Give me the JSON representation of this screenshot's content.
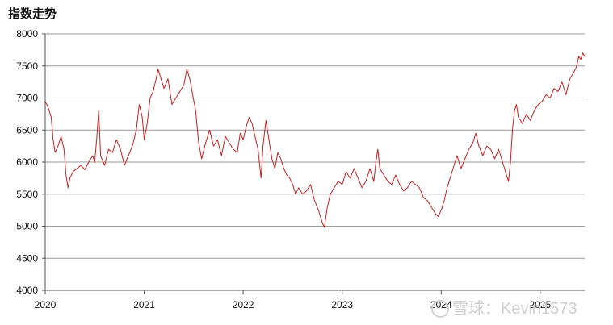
{
  "chart_data": {
    "type": "line",
    "title": "指数走势",
    "xlabel": "",
    "ylabel": "",
    "xlim": [
      2020.0,
      2025.45
    ],
    "ylim": [
      4000,
      8000
    ],
    "yticks": [
      4000,
      4500,
      5000,
      5500,
      6000,
      6500,
      7000,
      7500,
      8000
    ],
    "xticks": [
      {
        "label": "2020",
        "value": 2020.0
      },
      {
        "label": "2021",
        "value": 2021.0
      },
      {
        "label": "2022",
        "value": 2022.0
      },
      {
        "label": "2023",
        "value": 2023.0
      },
      {
        "label": "2024",
        "value": 2024.0
      },
      {
        "label": "2025",
        "value": 2025.0
      }
    ],
    "grid": "horizontal",
    "legend": "none",
    "series": [
      {
        "name": "",
        "color": "#cc1e1e",
        "points": [
          [
            2020.0,
            6950
          ],
          [
            2020.03,
            6850
          ],
          [
            2020.06,
            6700
          ],
          [
            2020.08,
            6350
          ],
          [
            2020.1,
            6150
          ],
          [
            2020.13,
            6250
          ],
          [
            2020.16,
            6400
          ],
          [
            2020.19,
            6200
          ],
          [
            2020.21,
            5800
          ],
          [
            2020.23,
            5600
          ],
          [
            2020.25,
            5750
          ],
          [
            2020.28,
            5850
          ],
          [
            2020.32,
            5900
          ],
          [
            2020.36,
            5950
          ],
          [
            2020.4,
            5880
          ],
          [
            2020.44,
            6000
          ],
          [
            2020.48,
            6100
          ],
          [
            2020.5,
            6000
          ],
          [
            2020.52,
            6350
          ],
          [
            2020.54,
            6800
          ],
          [
            2020.56,
            6100
          ],
          [
            2020.6,
            5950
          ],
          [
            2020.64,
            6200
          ],
          [
            2020.68,
            6150
          ],
          [
            2020.72,
            6350
          ],
          [
            2020.76,
            6200
          ],
          [
            2020.8,
            5950
          ],
          [
            2020.84,
            6100
          ],
          [
            2020.88,
            6250
          ],
          [
            2020.92,
            6500
          ],
          [
            2020.95,
            6900
          ],
          [
            2020.98,
            6700
          ],
          [
            2021.0,
            6350
          ],
          [
            2021.03,
            6600
          ],
          [
            2021.06,
            7000
          ],
          [
            2021.09,
            7100
          ],
          [
            2021.12,
            7300
          ],
          [
            2021.14,
            7450
          ],
          [
            2021.17,
            7300
          ],
          [
            2021.2,
            7150
          ],
          [
            2021.24,
            7300
          ],
          [
            2021.28,
            6900
          ],
          [
            2021.32,
            7000
          ],
          [
            2021.36,
            7100
          ],
          [
            2021.4,
            7200
          ],
          [
            2021.43,
            7450
          ],
          [
            2021.46,
            7300
          ],
          [
            2021.49,
            7050
          ],
          [
            2021.52,
            6800
          ],
          [
            2021.55,
            6300
          ],
          [
            2021.58,
            6050
          ],
          [
            2021.62,
            6300
          ],
          [
            2021.66,
            6500
          ],
          [
            2021.7,
            6250
          ],
          [
            2021.74,
            6350
          ],
          [
            2021.78,
            6100
          ],
          [
            2021.82,
            6400
          ],
          [
            2021.86,
            6300
          ],
          [
            2021.9,
            6200
          ],
          [
            2021.94,
            6150
          ],
          [
            2021.97,
            6450
          ],
          [
            2022.0,
            6350
          ],
          [
            2022.03,
            6550
          ],
          [
            2022.06,
            6700
          ],
          [
            2022.09,
            6600
          ],
          [
            2022.12,
            6400
          ],
          [
            2022.15,
            6200
          ],
          [
            2022.18,
            5750
          ],
          [
            2022.2,
            6250
          ],
          [
            2022.23,
            6650
          ],
          [
            2022.26,
            6350
          ],
          [
            2022.29,
            6050
          ],
          [
            2022.32,
            5900
          ],
          [
            2022.35,
            6150
          ],
          [
            2022.38,
            6050
          ],
          [
            2022.41,
            5900
          ],
          [
            2022.44,
            5800
          ],
          [
            2022.47,
            5750
          ],
          [
            2022.5,
            5650
          ],
          [
            2022.53,
            5500
          ],
          [
            2022.56,
            5600
          ],
          [
            2022.6,
            5500
          ],
          [
            2022.64,
            5550
          ],
          [
            2022.68,
            5650
          ],
          [
            2022.72,
            5400
          ],
          [
            2022.76,
            5250
          ],
          [
            2022.8,
            5050
          ],
          [
            2022.82,
            4980
          ],
          [
            2022.85,
            5300
          ],
          [
            2022.88,
            5500
          ],
          [
            2022.92,
            5600
          ],
          [
            2022.96,
            5700
          ],
          [
            2023.0,
            5650
          ],
          [
            2023.04,
            5850
          ],
          [
            2023.08,
            5750
          ],
          [
            2023.12,
            5900
          ],
          [
            2023.16,
            5750
          ],
          [
            2023.2,
            5600
          ],
          [
            2023.24,
            5700
          ],
          [
            2023.28,
            5900
          ],
          [
            2023.32,
            5700
          ],
          [
            2023.34,
            6000
          ],
          [
            2023.36,
            6200
          ],
          [
            2023.38,
            5900
          ],
          [
            2023.42,
            5800
          ],
          [
            2023.46,
            5700
          ],
          [
            2023.5,
            5650
          ],
          [
            2023.54,
            5800
          ],
          [
            2023.58,
            5650
          ],
          [
            2023.62,
            5550
          ],
          [
            2023.66,
            5600
          ],
          [
            2023.7,
            5700
          ],
          [
            2023.74,
            5650
          ],
          [
            2023.78,
            5600
          ],
          [
            2023.82,
            5450
          ],
          [
            2023.86,
            5400
          ],
          [
            2023.9,
            5300
          ],
          [
            2023.94,
            5200
          ],
          [
            2023.97,
            5150
          ],
          [
            2024.0,
            5250
          ],
          [
            2024.03,
            5400
          ],
          [
            2024.06,
            5600
          ],
          [
            2024.09,
            5750
          ],
          [
            2024.12,
            5900
          ],
          [
            2024.16,
            6100
          ],
          [
            2024.2,
            5900
          ],
          [
            2024.24,
            6050
          ],
          [
            2024.28,
            6200
          ],
          [
            2024.32,
            6300
          ],
          [
            2024.35,
            6450
          ],
          [
            2024.38,
            6250
          ],
          [
            2024.42,
            6100
          ],
          [
            2024.46,
            6250
          ],
          [
            2024.5,
            6200
          ],
          [
            2024.54,
            6050
          ],
          [
            2024.58,
            6200
          ],
          [
            2024.62,
            6000
          ],
          [
            2024.65,
            5850
          ],
          [
            2024.68,
            5700
          ],
          [
            2024.7,
            6000
          ],
          [
            2024.72,
            6500
          ],
          [
            2024.74,
            6800
          ],
          [
            2024.76,
            6900
          ],
          [
            2024.78,
            6700
          ],
          [
            2024.82,
            6600
          ],
          [
            2024.86,
            6750
          ],
          [
            2024.9,
            6650
          ],
          [
            2024.94,
            6800
          ],
          [
            2024.98,
            6900
          ],
          [
            2025.02,
            6950
          ],
          [
            2025.06,
            7050
          ],
          [
            2025.1,
            7000
          ],
          [
            2025.14,
            7150
          ],
          [
            2025.18,
            7100
          ],
          [
            2025.22,
            7250
          ],
          [
            2025.26,
            7050
          ],
          [
            2025.3,
            7300
          ],
          [
            2025.34,
            7400
          ],
          [
            2025.37,
            7500
          ],
          [
            2025.39,
            7650
          ],
          [
            2025.41,
            7600
          ],
          [
            2025.43,
            7700
          ],
          [
            2025.45,
            7650
          ]
        ]
      }
    ]
  },
  "watermark": "雪球：Kevin1573"
}
